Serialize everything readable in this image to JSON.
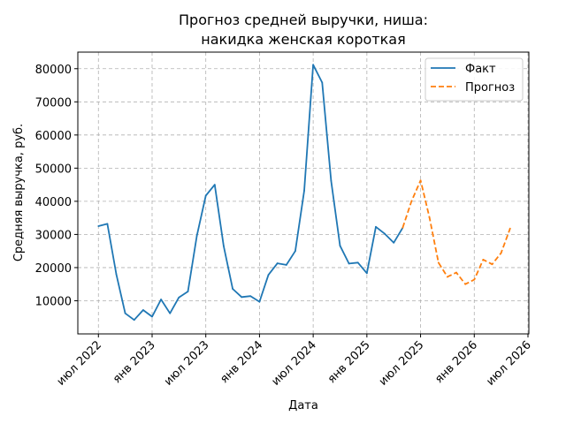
{
  "chart_data": {
    "type": "line",
    "title_lines": [
      "Прогноз средней выручки, ниша:",
      "накидка женская короткая"
    ],
    "xlabel": "Дата",
    "ylabel": "Средняя выручка, руб.",
    "grid": true,
    "legend_position": "top-right",
    "x_ticks": [
      "2022-07",
      "2023-01",
      "2023-07",
      "2024-01",
      "2024-07",
      "2025-01",
      "2025-07",
      "2026-01",
      "2026-07"
    ],
    "x_tick_labels": [
      "июл 2022",
      "янв 2023",
      "июл 2023",
      "янв 2024",
      "июл 2024",
      "янв 2025",
      "июл 2025",
      "янв 2026",
      "июл 2026"
    ],
    "y_ticks": [
      10000,
      20000,
      30000,
      40000,
      50000,
      60000,
      70000,
      80000
    ],
    "y_tick_labels": [
      "10000",
      "20000",
      "30000",
      "40000",
      "50000",
      "60000",
      "70000",
      "80000"
    ],
    "xlim": [
      "2022-05",
      "2026-07"
    ],
    "ylim": [
      0,
      85000
    ],
    "series": [
      {
        "name": "Факт",
        "color": "#1f77b4",
        "style": "solid",
        "points": [
          [
            "2022-07",
            32500
          ],
          [
            "2022-08",
            33200
          ],
          [
            "2022-09",
            18000
          ],
          [
            "2022-10",
            6200
          ],
          [
            "2022-11",
            4200
          ],
          [
            "2022-12",
            7200
          ],
          [
            "2023-01",
            5200
          ],
          [
            "2023-02",
            10400
          ],
          [
            "2023-03",
            6200
          ],
          [
            "2023-04",
            11000
          ],
          [
            "2023-05",
            12800
          ],
          [
            "2023-06",
            29600
          ],
          [
            "2023-07",
            41700
          ],
          [
            "2023-08",
            45000
          ],
          [
            "2023-09",
            26500
          ],
          [
            "2023-10",
            13600
          ],
          [
            "2023-11",
            11100
          ],
          [
            "2023-12",
            11400
          ],
          [
            "2024-01",
            9700
          ],
          [
            "2024-02",
            17800
          ],
          [
            "2024-03",
            21300
          ],
          [
            "2024-04",
            20800
          ],
          [
            "2024-05",
            25000
          ],
          [
            "2024-06",
            43200
          ],
          [
            "2024-07",
            81200
          ],
          [
            "2024-08",
            75800
          ],
          [
            "2024-09",
            46200
          ],
          [
            "2024-10",
            26600
          ],
          [
            "2024-11",
            21200
          ],
          [
            "2024-12",
            21500
          ],
          [
            "2025-01",
            18300
          ],
          [
            "2025-02",
            32300
          ],
          [
            "2025-03",
            30200
          ],
          [
            "2025-04",
            27500
          ],
          [
            "2025-05",
            32000
          ]
        ]
      },
      {
        "name": "Прогноз",
        "color": "#ff7f0e",
        "style": "dashed",
        "points": [
          [
            "2025-05",
            32000
          ],
          [
            "2025-06",
            40100
          ],
          [
            "2025-07",
            46300
          ],
          [
            "2025-08",
            35000
          ],
          [
            "2025-09",
            21500
          ],
          [
            "2025-10",
            17200
          ],
          [
            "2025-11",
            18500
          ],
          [
            "2025-12",
            15000
          ],
          [
            "2026-01",
            16400
          ],
          [
            "2026-02",
            22400
          ],
          [
            "2026-03",
            21000
          ],
          [
            "2026-04",
            24400
          ],
          [
            "2026-05",
            31800
          ]
        ]
      }
    ]
  }
}
